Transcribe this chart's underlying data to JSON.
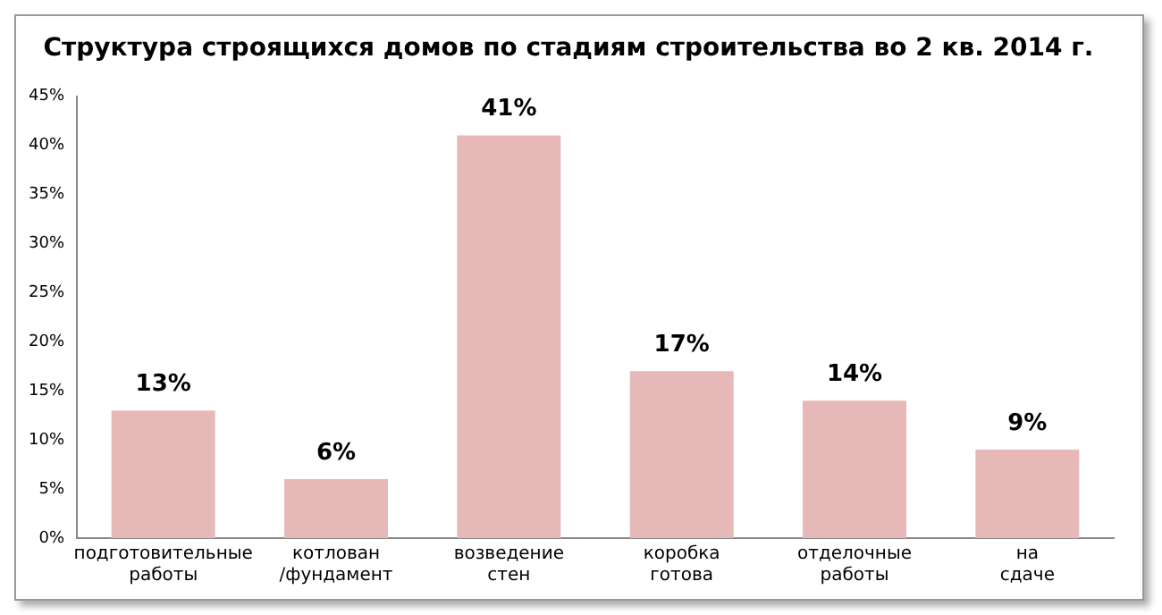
{
  "chart_data": {
    "type": "bar",
    "title": "Структура строящихся домов по стадиям строительства во 2 кв. 2014 г.",
    "categories": [
      "подготовительные работы",
      "котлован /фундамент",
      "возведение стен",
      "коробка готова",
      "отделочные работы",
      "на сдаче"
    ],
    "values": [
      13,
      6,
      41,
      17,
      14,
      9
    ],
    "value_labels": [
      "13%",
      "6%",
      "41%",
      "17%",
      "14%",
      "9%"
    ],
    "color": "#e6b9b8",
    "ylim": [
      0,
      45
    ],
    "yticks": [
      {
        "value": 0,
        "label": "0%"
      },
      {
        "value": 5,
        "label": "5%"
      },
      {
        "value": 10,
        "label": "10%"
      },
      {
        "value": 15,
        "label": "15%"
      },
      {
        "value": 20,
        "label": "20%"
      },
      {
        "value": 25,
        "label": "25%"
      },
      {
        "value": 30,
        "label": "30%"
      },
      {
        "value": 35,
        "label": "35%"
      },
      {
        "value": 40,
        "label": "40%"
      },
      {
        "value": 45,
        "label": "45%"
      }
    ],
    "grid": false,
    "legend": false
  }
}
